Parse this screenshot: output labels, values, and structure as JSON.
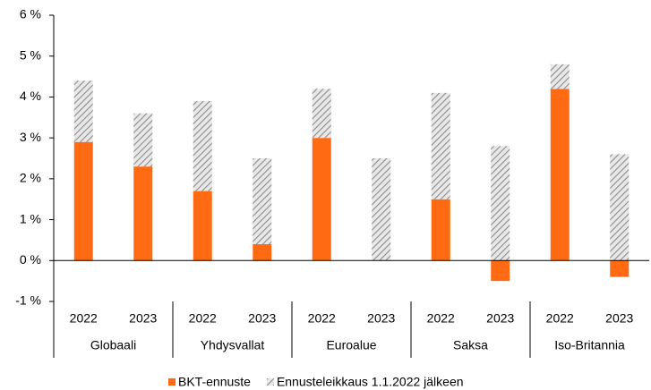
{
  "chart_data": {
    "type": "stacked_bar",
    "categories": [
      "2022",
      "2023",
      "2022",
      "2023",
      "2022",
      "2023",
      "2022",
      "2023",
      "2022",
      "2023"
    ],
    "groups": [
      "Globaali",
      "Yhdysvallat",
      "Euroalue",
      "Saksa",
      "Iso-Britannia"
    ],
    "series": [
      {
        "name": "BKT-ennuste",
        "color": "#ff6a13",
        "values": [
          2.9,
          2.3,
          1.7,
          0.4,
          3.0,
          0,
          1.5,
          -0.5,
          4.2,
          -0.4
        ]
      },
      {
        "name": "Ennusteleikkaus 1.1.2022 jälkeen",
        "color": "#a6a6a6",
        "pattern": "hatch",
        "values": [
          1.5,
          1.3,
          2.2,
          2.1,
          1.2,
          2.5,
          2.6,
          2.8,
          0.6,
          2.6
        ]
      }
    ],
    "ylim": [
      -1,
      6
    ],
    "yticks": [
      {
        "value": -1,
        "label": "-1 %"
      },
      {
        "value": 0,
        "label": "0 %"
      },
      {
        "value": 1,
        "label": "1 %"
      },
      {
        "value": 2,
        "label": "2 %"
      },
      {
        "value": 3,
        "label": "3 %"
      },
      {
        "value": 4,
        "label": "4 %"
      },
      {
        "value": 5,
        "label": "5 %"
      },
      {
        "value": 6,
        "label": "6 %"
      }
    ],
    "grid": false,
    "legend": "bottom"
  }
}
